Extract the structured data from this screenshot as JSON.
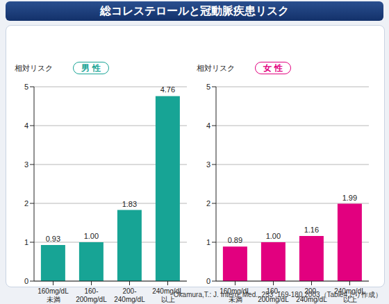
{
  "title": "総コレステロールと冠動脈疾患リスク",
  "source": "Okamura,T.: J. Intern. Med., 253 ,169-180,2003（Table4より作成）",
  "chart_data": [
    {
      "type": "bar",
      "subtitle": "男 性",
      "y_label": "相対リスク",
      "categories": [
        "160mg/dL\n未満",
        "160-\n200mg/dL",
        "200-\n240mg/dL",
        "240mg/dL\n以上"
      ],
      "values": [
        0.93,
        1,
        1.83,
        4.76
      ],
      "value_labels": [
        "0.93",
        "1.00",
        "1.83",
        "4.76"
      ],
      "color": "#17a495",
      "ylim": [
        0,
        5
      ],
      "yticks": [
        0,
        1,
        2,
        3,
        4,
        5
      ],
      "grid": true,
      "data_labels": true
    },
    {
      "type": "bar",
      "subtitle": "女 性",
      "y_label": "相対リスク",
      "categories": [
        "160mg/dL\n未満",
        "160-\n200mg/dL",
        "200-\n240mg/dL",
        "240mg/dL\n以上"
      ],
      "values": [
        0.89,
        1,
        1.16,
        1.99
      ],
      "value_labels": [
        "0.89",
        "1.00",
        "1.16",
        "1.99"
      ],
      "color": "#e2007f",
      "ylim": [
        0,
        5
      ],
      "yticks": [
        0,
        1,
        2,
        3,
        4,
        5
      ],
      "grid": true,
      "data_labels": true
    }
  ]
}
